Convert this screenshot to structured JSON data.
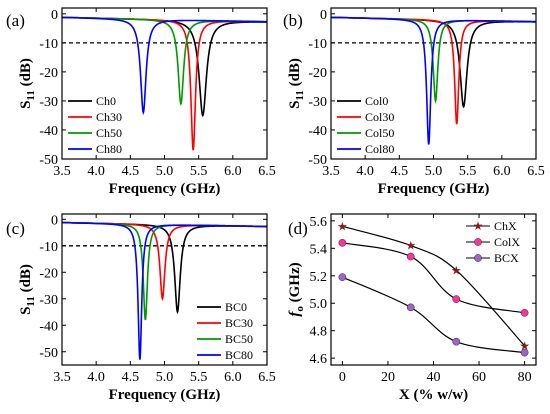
{
  "chart_data": [
    {
      "panel": "(a)",
      "type": "line",
      "xlabel": "Frequency (GHz)",
      "ylabel_main": "S",
      "ylabel_sub": "11",
      "ylabel_unit": " (dB)",
      "xlim": [
        3.5,
        6.5
      ],
      "ylim": [
        -50,
        2
      ],
      "xticks": [
        3.5,
        4.0,
        4.5,
        5.0,
        5.5,
        6.0,
        6.5
      ],
      "yticks": [
        0,
        -10,
        -20,
        -30,
        -40,
        -50
      ],
      "reference_line": -10,
      "legend_position": "bottom-left",
      "series": [
        {
          "name": "Ch0",
          "color": "#000000",
          "f0": 5.56,
          "min": -35,
          "width": 0.16
        },
        {
          "name": "Ch30",
          "color": "#ff0000",
          "f0": 5.42,
          "min": -47,
          "width": 0.1
        },
        {
          "name": "Ch50",
          "color": "#009900",
          "f0": 5.24,
          "min": -31,
          "width": 0.12
        },
        {
          "name": "Ch80",
          "color": "#0000ff",
          "f0": 4.69,
          "min": -34,
          "width": 0.12
        }
      ]
    },
    {
      "panel": "(b)",
      "type": "line",
      "xlabel": "Frequency (GHz)",
      "ylabel_main": "S",
      "ylabel_sub": "11",
      "ylabel_unit": " (dB)",
      "xlim": [
        3.5,
        6.5
      ],
      "ylim": [
        -50,
        2
      ],
      "xticks": [
        3.5,
        4.0,
        4.5,
        5.0,
        5.5,
        6.0,
        6.5
      ],
      "yticks": [
        0,
        -10,
        -20,
        -30,
        -40,
        -50
      ],
      "reference_line": -10,
      "legend_position": "bottom-left",
      "series": [
        {
          "name": "Col0",
          "color": "#000000",
          "f0": 5.44,
          "min": -32,
          "width": 0.15
        },
        {
          "name": "Col30",
          "color": "#ff0000",
          "f0": 5.34,
          "min": -38,
          "width": 0.09
        },
        {
          "name": "Col50",
          "color": "#009900",
          "f0": 5.03,
          "min": -30,
          "width": 0.1
        },
        {
          "name": "Col80",
          "color": "#0000ff",
          "f0": 4.93,
          "min": -45,
          "width": 0.09
        }
      ]
    },
    {
      "panel": "(c)",
      "type": "line",
      "xlabel": "Frequency (GHz)",
      "ylabel_main": "S",
      "ylabel_sub": "11",
      "ylabel_unit": " (dB)",
      "xlim": [
        3.5,
        6.5
      ],
      "ylim": [
        -55,
        2
      ],
      "xticks": [
        3.5,
        4.0,
        4.5,
        5.0,
        5.5,
        6.0,
        6.5
      ],
      "yticks": [
        0,
        -10,
        -20,
        -30,
        -40,
        -50
      ],
      "reference_line": -10,
      "legend_position": "bottom-right",
      "series": [
        {
          "name": "BC0",
          "color": "#000000",
          "f0": 5.19,
          "min": -35,
          "width": 0.12
        },
        {
          "name": "BC30",
          "color": "#ff0000",
          "f0": 4.97,
          "min": -30,
          "width": 0.11
        },
        {
          "name": "BC50",
          "color": "#009900",
          "f0": 4.72,
          "min": -38,
          "width": 0.09
        },
        {
          "name": "BC80",
          "color": "#0000ff",
          "f0": 4.64,
          "min": -53,
          "width": 0.08
        }
      ]
    },
    {
      "panel": "(d)",
      "type": "line",
      "xlabel": "X (% w/w)",
      "ylabel_main": "f",
      "ylabel_sub": "o",
      "ylabel_unit": " (GHz)",
      "xlim": [
        -5,
        85
      ],
      "ylim": [
        4.55,
        5.65
      ],
      "xticks": [
        0,
        20,
        40,
        60,
        80
      ],
      "yticks": [
        4.6,
        4.8,
        5.0,
        5.2,
        5.4,
        5.6
      ],
      "legend_position": "top-right",
      "x": [
        0,
        30,
        50,
        80
      ],
      "series": [
        {
          "name": "ChX",
          "color": "#8b1a1a",
          "marker": "star",
          "values": [
            5.56,
            5.42,
            5.24,
            4.69
          ]
        },
        {
          "name": "ColX",
          "color": "#ff3399",
          "marker": "circle",
          "values": [
            5.44,
            5.34,
            5.03,
            4.93
          ]
        },
        {
          "name": "BCX",
          "color": "#9966cc",
          "marker": "circle",
          "values": [
            5.19,
            4.97,
            4.72,
            4.64
          ]
        }
      ]
    }
  ]
}
